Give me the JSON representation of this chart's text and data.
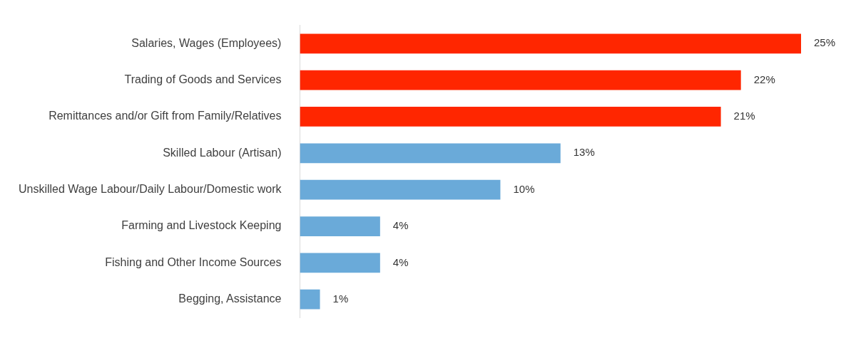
{
  "chart_data": {
    "type": "bar",
    "orientation": "horizontal",
    "categories": [
      "Salaries, Wages (Employees)",
      "Trading of Goods and Services",
      "Remittances and/or Gift from Family/Relatives",
      "Skilled Labour (Artisan)",
      "Unskilled Wage Labour/Daily Labour/Domestic work",
      "Farming and Livestock Keeping",
      "Fishing and Other Income Sources",
      "Begging, Assistance"
    ],
    "values": [
      25,
      22,
      21,
      13,
      10,
      4,
      4,
      1
    ],
    "value_labels": [
      "25%",
      "22%",
      "21%",
      "13%",
      "10%",
      "4%",
      "4%",
      "1%"
    ],
    "colors": [
      "#ff2600",
      "#ff2600",
      "#ff2600",
      "#6aaad9",
      "#6aaad9",
      "#6aaad9",
      "#6aaad9",
      "#6aaad9"
    ],
    "legend": false
  }
}
